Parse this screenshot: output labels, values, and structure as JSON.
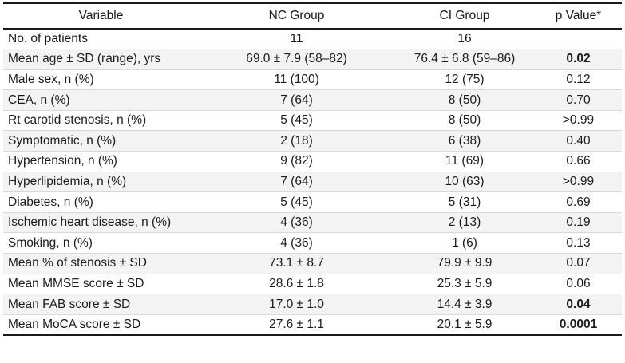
{
  "headers": {
    "variable": "Variable",
    "nc_group": "NC Group",
    "ci_group": "CI Group",
    "p_value": "p Value*"
  },
  "rows": [
    {
      "variable": "No. of patients",
      "nc": "11",
      "ci": "16",
      "p": "",
      "significant": false
    },
    {
      "variable": "Mean age ± SD (range), yrs",
      "nc": "69.0 ± 7.9 (58–82)",
      "ci": "76.4 ± 6.8 (59–86)",
      "p": "0.02",
      "significant": true
    },
    {
      "variable": "Male sex, n (%)",
      "nc": "11 (100)",
      "ci": "12 (75)",
      "p": "0.12",
      "significant": false
    },
    {
      "variable": "CEA, n (%)",
      "nc": "7 (64)",
      "ci": "8 (50)",
      "p": "0.70",
      "significant": false
    },
    {
      "variable": "Rt carotid stenosis, n (%)",
      "nc": "5 (45)",
      "ci": "8 (50)",
      "p": ">0.99",
      "significant": false
    },
    {
      "variable": "Symptomatic, n (%)",
      "nc": "2 (18)",
      "ci": "6 (38)",
      "p": "0.40",
      "significant": false
    },
    {
      "variable": "Hypertension, n (%)",
      "nc": "9 (82)",
      "ci": "11 (69)",
      "p": "0.66",
      "significant": false
    },
    {
      "variable": "Hyperlipidemia, n (%)",
      "nc": "7 (64)",
      "ci": "10 (63)",
      "p": ">0.99",
      "significant": false
    },
    {
      "variable": "Diabetes, n (%)",
      "nc": "5 (45)",
      "ci": "5 (31)",
      "p": "0.69",
      "significant": false
    },
    {
      "variable": "Ischemic heart disease, n (%)",
      "nc": "4 (36)",
      "ci": "2 (13)",
      "p": "0.19",
      "significant": false
    },
    {
      "variable": "Smoking, n (%)",
      "nc": "4 (36)",
      "ci": "1 (6)",
      "p": "0.13",
      "significant": false
    },
    {
      "variable": "Mean % of stenosis ± SD",
      "nc": "73.1 ± 8.7",
      "ci": "79.9 ± 9.9",
      "p": "0.07",
      "significant": false
    },
    {
      "variable": "Mean MMSE score ± SD",
      "nc": "28.6 ± 1.8",
      "ci": "25.3 ± 5.9",
      "p": "0.06",
      "significant": false
    },
    {
      "variable": "Mean FAB score ± SD",
      "nc": "17.0 ± 1.0",
      "ci": "14.4 ± 3.9",
      "p": "0.04",
      "significant": true
    },
    {
      "variable": "Mean MoCA score ± SD",
      "nc": "27.6 ± 1.1",
      "ci": "20.1 ± 5.9",
      "p": "0.0001",
      "significant": true
    }
  ]
}
